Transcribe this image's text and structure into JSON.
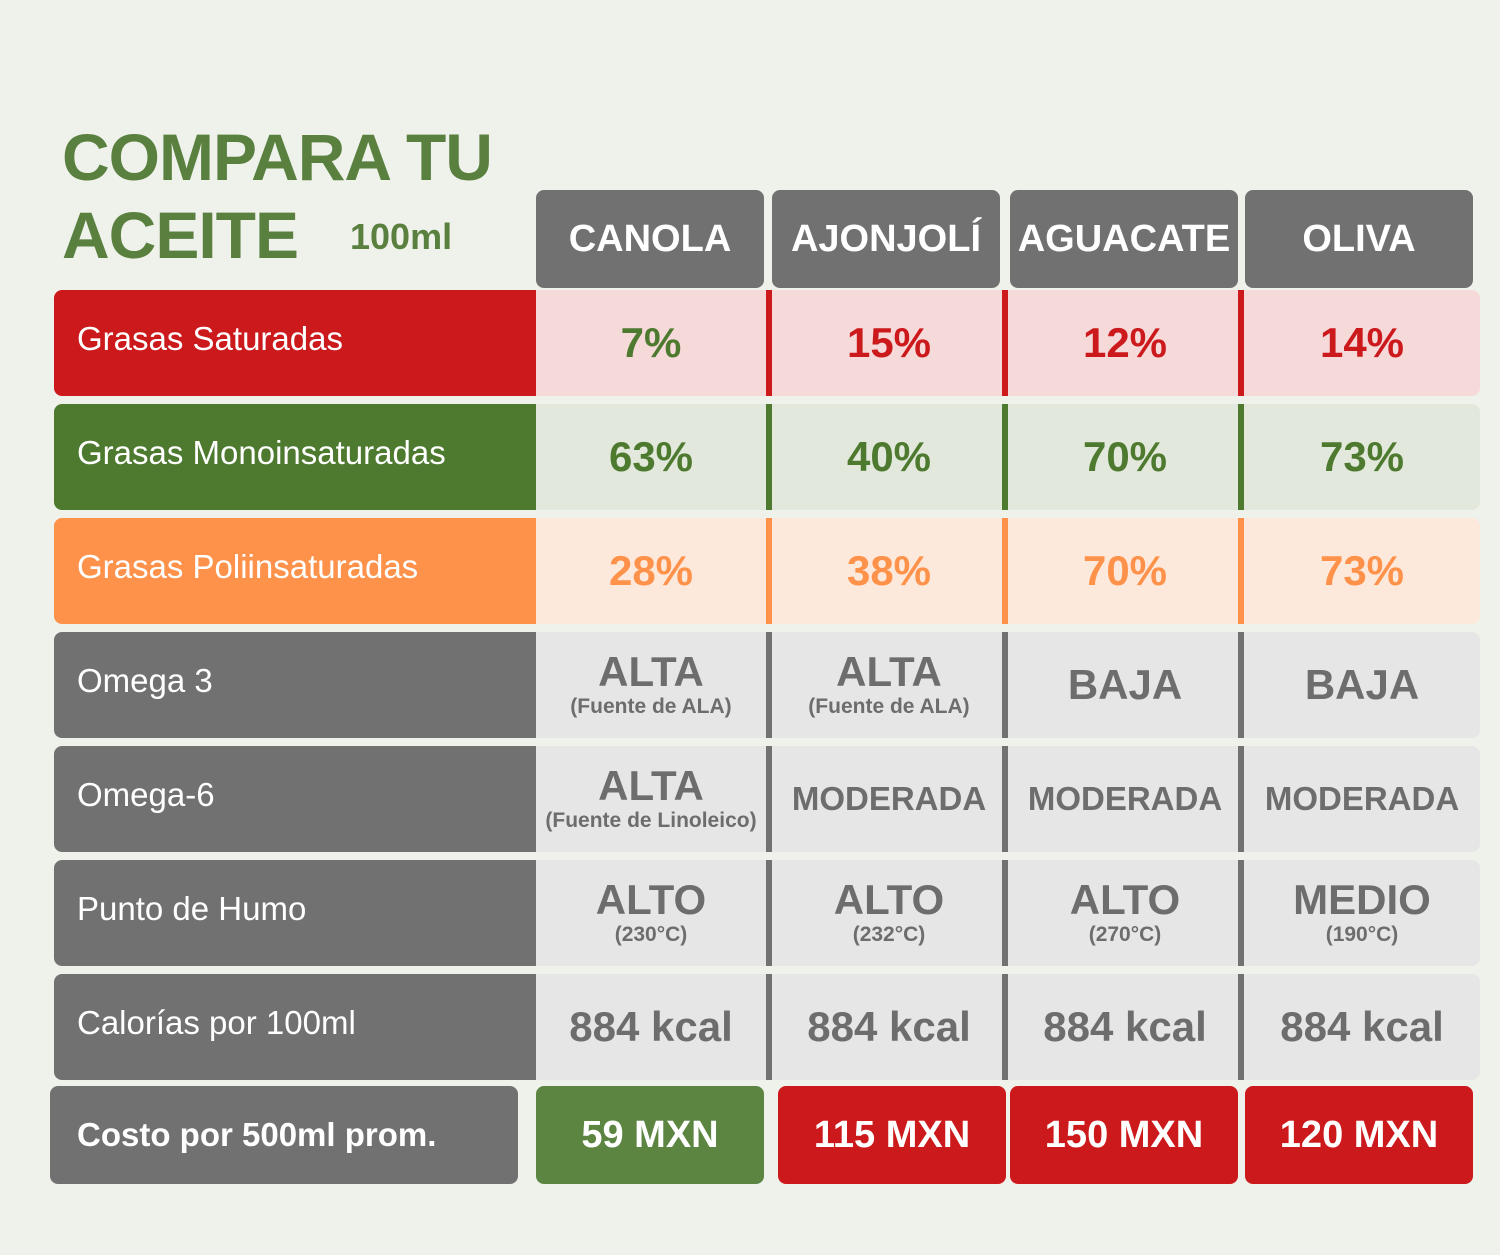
{
  "title": {
    "line1": "COMPARA TU",
    "line2": "ACEITE",
    "volume": "100ml"
  },
  "columns": [
    "CANOLA",
    "AJONJOLÍ",
    "AGUACATE",
    "OLIVA"
  ],
  "colors": {
    "background": "#eff2eb",
    "brand_green": "#5a8040",
    "header_gray": "#717171",
    "saturated_red": "#cc1a1c",
    "saturated_bg": "#f6d9d9",
    "mono_green": "#4e7a30",
    "mono_bg": "#e2e8dc",
    "poly_orange": "#ff924a",
    "poly_bg": "#fde9dc",
    "neutral_bg": "#e6e6e6",
    "neutral_text": "#6d6d6d",
    "cost_green": "#5c8542",
    "cost_red": "#cc1a1c"
  },
  "rows": [
    {
      "label": "Grasas Saturadas",
      "values": [
        {
          "main": "7%",
          "color": "#4e7a30"
        },
        {
          "main": "15%",
          "color": "#cc1a1c"
        },
        {
          "main": "12%",
          "color": "#cc1a1c"
        },
        {
          "main": "14%",
          "color": "#cc1a1c"
        }
      ]
    },
    {
      "label": "Grasas Monoinsaturadas",
      "values": [
        {
          "main": "63%"
        },
        {
          "main": "40%"
        },
        {
          "main": "70%"
        },
        {
          "main": "73%"
        }
      ]
    },
    {
      "label": "Grasas Poliinsaturadas",
      "values": [
        {
          "main": "28%"
        },
        {
          "main": "38%"
        },
        {
          "main": "70%"
        },
        {
          "main": "73%"
        }
      ]
    },
    {
      "label": "Omega 3",
      "values": [
        {
          "main": "ALTA",
          "sub": "(Fuente de ALA)"
        },
        {
          "main": "ALTA",
          "sub": "(Fuente de ALA)"
        },
        {
          "main": "BAJA"
        },
        {
          "main": "BAJA"
        }
      ]
    },
    {
      "label": "Omega-6",
      "values": [
        {
          "main": "ALTA",
          "sub": "(Fuente de Linoleico)"
        },
        {
          "main": "MODERADA"
        },
        {
          "main": "MODERADA"
        },
        {
          "main": "MODERADA"
        }
      ]
    },
    {
      "label": "Punto de Humo",
      "values": [
        {
          "main": "ALTO",
          "sub": "(230°C)"
        },
        {
          "main": "ALTO",
          "sub": "(232°C)"
        },
        {
          "main": "ALTO",
          "sub": "(270°C)"
        },
        {
          "main": "MEDIO",
          "sub": "(190°C)"
        }
      ]
    },
    {
      "label": "Calorías por 100ml",
      "values": [
        {
          "main": "884 kcal"
        },
        {
          "main": "884 kcal"
        },
        {
          "main": "884 kcal"
        },
        {
          "main": "884 kcal"
        }
      ]
    }
  ],
  "cost": {
    "label": "Costo por 500ml prom.",
    "values": [
      "59 MXN",
      "115 MXN",
      "150 MXN",
      "120 MXN"
    ]
  }
}
